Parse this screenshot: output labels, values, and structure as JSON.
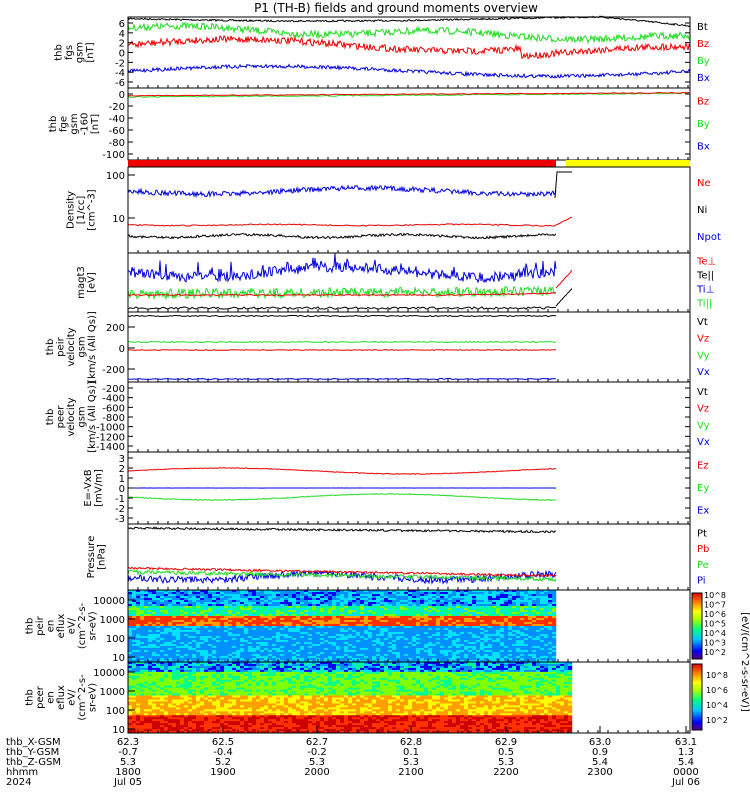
{
  "title": "P1 (TH-B) fields and ground moments overview",
  "colors": {
    "black": "#000000",
    "red": "#ee0000",
    "green": "#22dd22",
    "blue": "#0000dd",
    "yellow": "#ffff00"
  },
  "chart_data": [
    {
      "type": "line",
      "id": "fgs",
      "ylabel": [
        "thb",
        "fgs",
        "gsm",
        "[nT]"
      ],
      "ylim": [
        -6,
        6
      ],
      "ticks": [
        "6",
        "4",
        "2",
        "0",
        "-2",
        "-4",
        "-6"
      ],
      "legend": [
        "Bt",
        "Bz",
        "By",
        "Bx"
      ],
      "series": [
        {
          "name": "Bt",
          "color": "#000000"
        },
        {
          "name": "Bz",
          "color": "#ee0000"
        },
        {
          "name": "By",
          "color": "#22dd22"
        },
        {
          "name": "Bx",
          "color": "#0000dd"
        }
      ]
    },
    {
      "type": "line",
      "id": "fge",
      "ylabel": [
        "thb",
        "fge",
        "gsm",
        "-160",
        "[nT]"
      ],
      "ylim": [
        -100,
        0
      ],
      "ticks": [
        "0",
        "-20",
        "-40",
        "-60",
        "-80",
        "-100"
      ],
      "legend": [
        "Bz",
        "By",
        "Bx"
      ],
      "series": [
        {
          "name": "Bz",
          "color": "#ee0000"
        },
        {
          "name": "By",
          "color": "#22dd22"
        },
        {
          "name": "Bx",
          "color": "#0000dd"
        }
      ]
    },
    {
      "type": "bar",
      "id": "mode_bar",
      "colors": [
        "#ee0000",
        "#ffff00"
      ]
    },
    {
      "type": "line",
      "id": "density",
      "ylabel": [
        "Density",
        "[1/cc]",
        "[cm^-3]"
      ],
      "ylog": true,
      "ylim": [
        3,
        130
      ],
      "ticks": [
        "100",
        "10"
      ],
      "legend": [
        "Ne",
        "Ni",
        "Npot"
      ],
      "series": [
        {
          "name": "Ne",
          "color": "#ee0000"
        },
        {
          "name": "Ni",
          "color": "#000000"
        },
        {
          "name": "Npot",
          "color": "#0000dd"
        }
      ]
    },
    {
      "type": "line",
      "id": "temperature",
      "ylabel": [
        "magt3",
        "[eV]"
      ],
      "legend": [
        "Te⊥",
        "Te||",
        "Ti⊥",
        "Ti||"
      ],
      "series": [
        {
          "name": "Te⊥",
          "color": "#ee0000"
        },
        {
          "name": "Te||",
          "color": "#000000"
        },
        {
          "name": "Ti⊥",
          "color": "#0000dd"
        },
        {
          "name": "Ti||",
          "color": "#22dd22"
        }
      ]
    },
    {
      "type": "line",
      "id": "peir_velocity",
      "ylabel": [
        "thb",
        "peir",
        "velocity",
        "gsm",
        "[km/s (All Qs)]"
      ],
      "ylim": [
        -350,
        350
      ],
      "ticks": [
        "200",
        "0",
        "-200"
      ],
      "legend": [
        "Vt",
        "Vz",
        "Vy",
        "Vx"
      ],
      "series": [
        {
          "name": "Vt",
          "color": "#000000"
        },
        {
          "name": "Vz",
          "color": "#ee0000"
        },
        {
          "name": "Vy",
          "color": "#22dd22"
        },
        {
          "name": "Vx",
          "color": "#0000dd"
        }
      ]
    },
    {
      "type": "line",
      "id": "peer_velocity",
      "ylabel": [
        "thb",
        "peer",
        "velocity",
        "gsm",
        "[km/s (All Qs)]"
      ],
      "ylim": [
        -1450,
        0
      ],
      "ticks": [
        "-200",
        "-400",
        "-600",
        "-800",
        "-1000",
        "-1200",
        "-1400"
      ],
      "legend": [
        "Vt",
        "Vz",
        "Vy",
        "Vx"
      ],
      "series": [
        {
          "name": "Vt",
          "color": "#000000"
        },
        {
          "name": "Vz",
          "color": "#ee0000"
        },
        {
          "name": "Vy",
          "color": "#22dd22"
        },
        {
          "name": "Vx",
          "color": "#0000dd"
        }
      ]
    },
    {
      "type": "line",
      "id": "efield",
      "ylabel": [
        "E=-VxB",
        "[mV/m]"
      ],
      "ylim": [
        -3.2,
        3.2
      ],
      "ticks": [
        "3",
        "2",
        "1",
        "0",
        "-1",
        "-2",
        "-3"
      ],
      "legend": [
        "Ez",
        "Ey",
        "Ex"
      ],
      "series": [
        {
          "name": "Ez",
          "color": "#ee0000"
        },
        {
          "name": "Ey",
          "color": "#22dd22"
        },
        {
          "name": "Ex",
          "color": "#0000dd"
        }
      ]
    },
    {
      "type": "line",
      "id": "pressure",
      "ylabel": [
        "Pressure",
        "[nPa]"
      ],
      "legend": [
        "Pt",
        "Pb",
        "Pe",
        "Pi"
      ],
      "series": [
        {
          "name": "Pt",
          "color": "#000000"
        },
        {
          "name": "Pb",
          "color": "#ee0000"
        },
        {
          "name": "Pe",
          "color": "#22dd22"
        },
        {
          "name": "Pi",
          "color": "#0000dd"
        }
      ]
    },
    {
      "type": "heatmap",
      "id": "peir_eflux",
      "ylabel": [
        "thb",
        "peir",
        "en",
        "eflux",
        "eV/",
        "(cm^2-s-",
        "sr-eV)"
      ],
      "ylog": true,
      "ylim": [
        8,
        15000
      ],
      "ticks": [
        "10000",
        "1000",
        "100",
        "10"
      ],
      "colorbar_label": "[eV/(cm^2-s-sr-eV) (All Qs)]",
      "colorbar_ticks": [
        "10^8",
        "10^7",
        "10^6",
        "10^5",
        "10^4",
        "10^3",
        "10^2"
      ]
    },
    {
      "type": "heatmap",
      "id": "peer_eflux",
      "ylabel": [
        "thb",
        "peer",
        "en",
        "eflux",
        "eV/",
        "(cm^2-s-",
        "sr-eV)"
      ],
      "ylog": true,
      "ylim": [
        8,
        15000
      ],
      "ticks": [
        "10000",
        "1000",
        "100",
        "10"
      ],
      "colorbar_label": "[eV/(cm^2-s-sr-eV)]",
      "colorbar_ticks": [
        "10^8",
        "10^6",
        "10^4",
        "10^2"
      ]
    }
  ],
  "xaxis": {
    "rows": [
      {
        "label": "thb_X-GSM",
        "values": [
          "62.3",
          "62.5",
          "62.7",
          "62.8",
          "62.9",
          "63.0",
          "63.1"
        ]
      },
      {
        "label": "thb_Y-GSM",
        "values": [
          "-0.7",
          "-0.4",
          "-0.2",
          "0.1",
          "0.5",
          "0.9",
          "1.3"
        ]
      },
      {
        "label": "thb_Z-GSM",
        "values": [
          "5.3",
          "5.2",
          "5.3",
          "5.3",
          "5.3",
          "5.4",
          "5.4"
        ]
      },
      {
        "label": "hhmm",
        "values": [
          "1800",
          "1900",
          "2000",
          "2100",
          "2200",
          "2300",
          "0000"
        ]
      },
      {
        "label": "2024",
        "values": [
          "Jul 05",
          "",
          "",
          "",
          "",
          "",
          "Jul 06"
        ]
      }
    ]
  }
}
